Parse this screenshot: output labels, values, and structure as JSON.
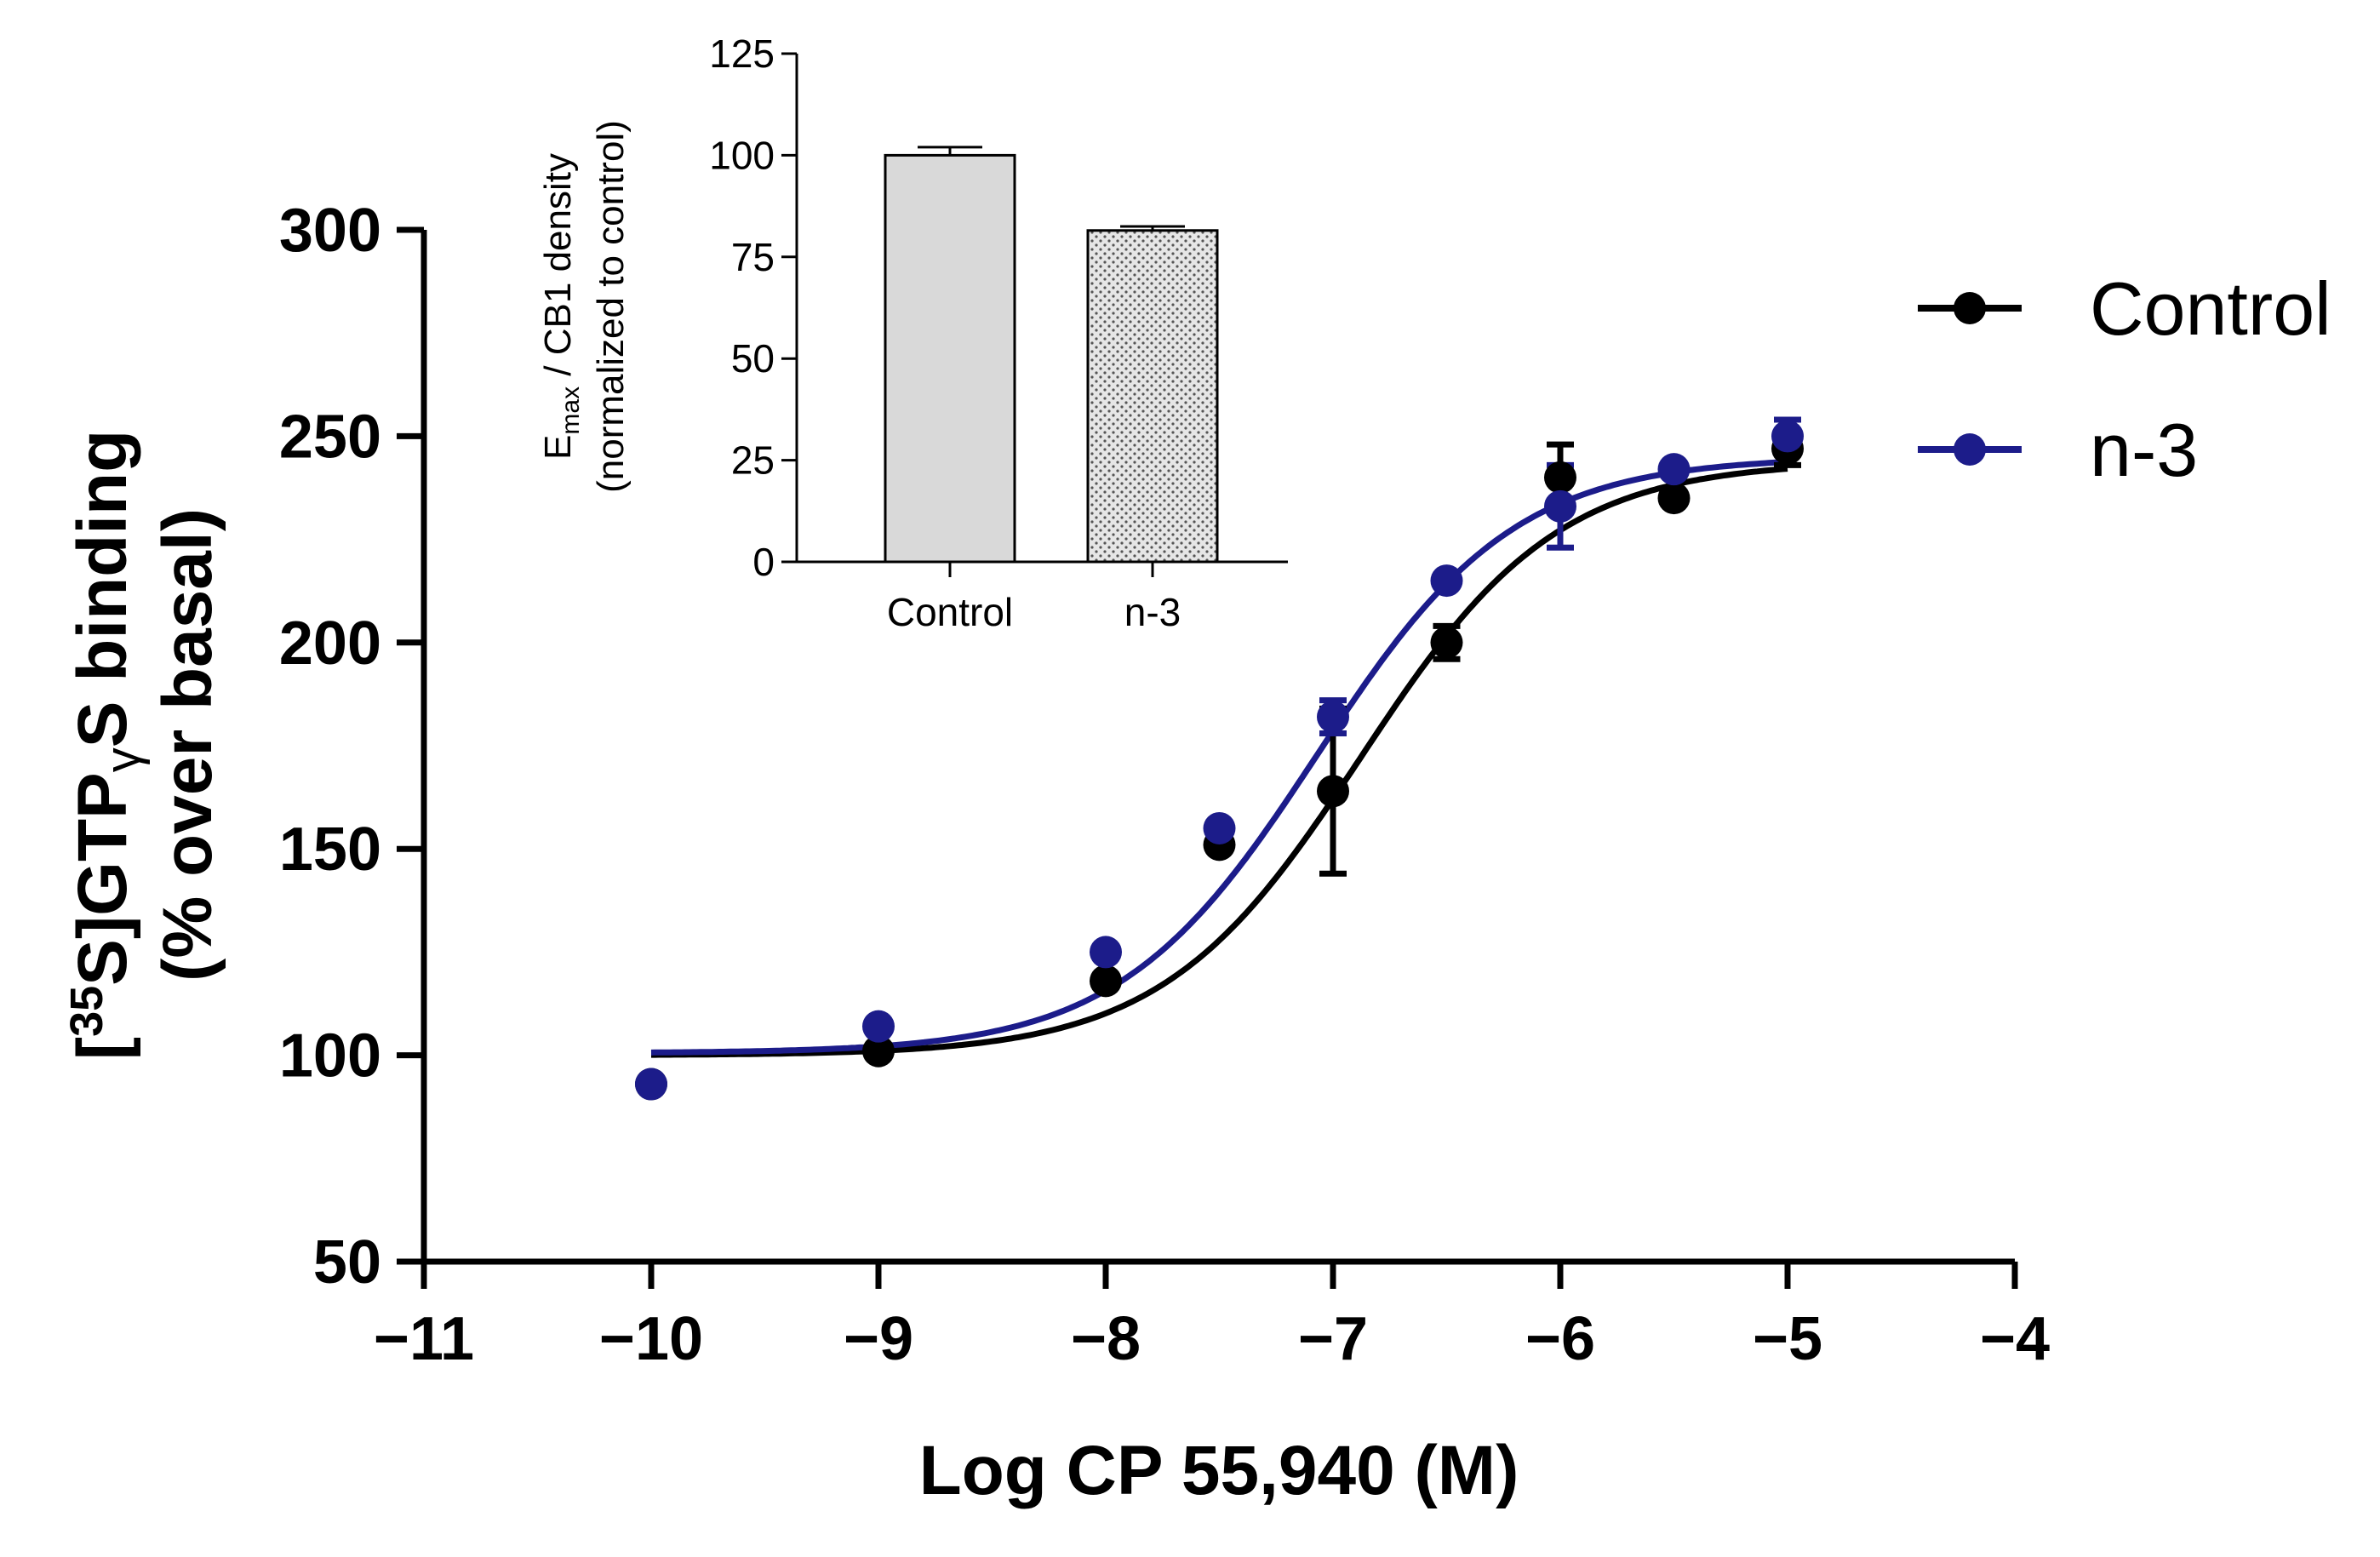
{
  "chart_data": [
    {
      "type": "scatter",
      "subtype": "dose-response",
      "title": "",
      "xlabel": "Log CP 55,940 (M)",
      "ylabel": {
        "bracket_open": "[",
        "isotope": "35",
        "text_1": "S]GTP",
        "gamma": "γ",
        "text_2": "S binding",
        "line2": "(% over basal)"
      },
      "xlim": [
        -11,
        -4
      ],
      "ylim": [
        50,
        300
      ],
      "x_ticks": [
        -11,
        -10,
        -9,
        -8,
        -7,
        -6,
        -5,
        -4
      ],
      "x_tick_labels": [
        "−11",
        "−10",
        "−9",
        "−8",
        "−7",
        "−6",
        "−5",
        "−4"
      ],
      "y_ticks": [
        50,
        100,
        150,
        200,
        250,
        300
      ],
      "y_tick_labels": [
        "50",
        "100",
        "150",
        "200",
        "250",
        "300"
      ],
      "legend": {
        "position": "top-right"
      },
      "series": [
        {
          "name": "Control",
          "color": "#000000",
          "points": [
            {
              "x": -10,
              "y": 93,
              "err": 0
            },
            {
              "x": -9,
              "y": 101,
              "err": 0
            },
            {
              "x": -8,
              "y": 118,
              "err": 0
            },
            {
              "x": -7.5,
              "y": 151,
              "err": 0
            },
            {
              "x": -7,
              "y": 164,
              "err": 20
            },
            {
              "x": -6.5,
              "y": 200,
              "err": 4
            },
            {
              "x": -6,
              "y": 240,
              "err": 8
            },
            {
              "x": -5.5,
              "y": 235,
              "err": 0
            },
            {
              "x": -5,
              "y": 247,
              "err": 4
            }
          ],
          "fit": {
            "bottom": 100,
            "top": 244,
            "logEC50": -6.88,
            "hill": 1
          }
        },
        {
          "name": "n-3",
          "color": "#1c1c8a",
          "points": [
            {
              "x": -10,
              "y": 93,
              "err": 0
            },
            {
              "x": -9,
              "y": 107,
              "err": 0
            },
            {
              "x": -8,
              "y": 125,
              "err": 0
            },
            {
              "x": -7.5,
              "y": 155,
              "err": 0
            },
            {
              "x": -7,
              "y": 182,
              "err": 4
            },
            {
              "x": -6.5,
              "y": 215,
              "err": 0
            },
            {
              "x": -6,
              "y": 233,
              "err": 10
            },
            {
              "x": -5.5,
              "y": 242,
              "err": 0
            },
            {
              "x": -5,
              "y": 250,
              "err": 4
            }
          ],
          "fit": {
            "bottom": 100.5,
            "top": 245,
            "logEC50": -7.07,
            "hill": 1
          }
        }
      ]
    },
    {
      "type": "bar",
      "title": "",
      "categories": [
        "Control",
        "n-3"
      ],
      "values": [
        100,
        81.5
      ],
      "errors": [
        2,
        1
      ],
      "colors": [
        "#d9d9d9",
        "#e6e6e6"
      ],
      "xlabel": "",
      "ylabel": {
        "base": "E",
        "subscript": "max",
        "rest": " / CB1 density",
        "line2": "(normalized to control)"
      },
      "ylim": [
        0,
        125
      ],
      "y_ticks": [
        0,
        25,
        50,
        75,
        100,
        125
      ],
      "y_tick_labels": [
        "0",
        "25",
        "50",
        "75",
        "100",
        "125"
      ]
    }
  ]
}
